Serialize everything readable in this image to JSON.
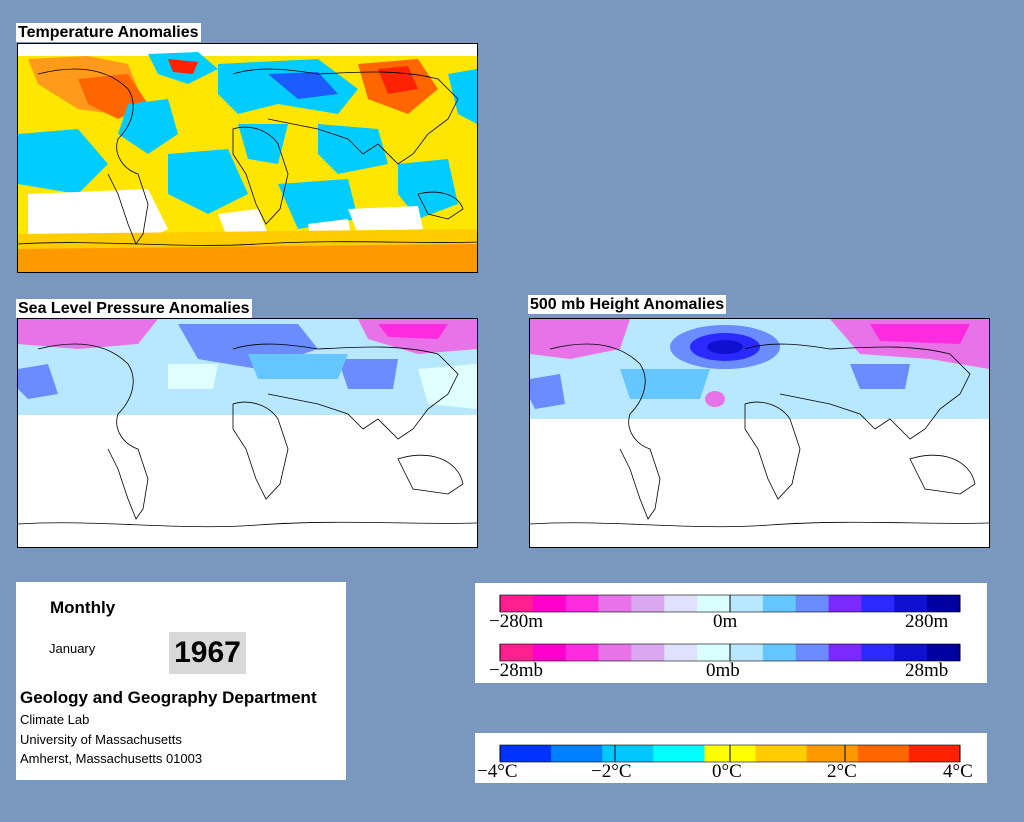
{
  "panels": {
    "temperature": {
      "title": "Temperature Anomalies"
    },
    "slp": {
      "title": "Sea Level Pressure Anomalies"
    },
    "height500": {
      "title": "500 mb Height Anomalies"
    }
  },
  "info": {
    "period_type": "Monthly",
    "month": "January",
    "year": "1967",
    "department": "Geology and Geography Department",
    "lines": [
      "Climate Lab",
      "University of Massachusetts",
      "Amherst, Massachusetts 01003"
    ]
  },
  "legends": {
    "height": {
      "labels": [
        "−280m",
        "0m",
        "280m"
      ]
    },
    "pressure": {
      "labels": [
        "−28mb",
        "0mb",
        "28mb"
      ]
    },
    "temperature": {
      "labels": [
        "−4°C",
        "−2°C",
        "0°C",
        "2°C",
        "4°C"
      ]
    }
  },
  "colors": {
    "background": "#7a97bf",
    "anomaly_scale_pink_blue": [
      "#ff1f8f",
      "#ff00cc",
      "#ff2be0",
      "#e873e8",
      "#d9a8f0",
      "#e0e0ff",
      "#d9ffff",
      "#b8e8ff",
      "#66c6ff",
      "#6a8cff",
      "#7a2aff",
      "#2a2aff",
      "#1010d0",
      "#0000a0"
    ],
    "temperature_scale": [
      "#0033ff",
      "#0080ff",
      "#00c8ff",
      "#00ffff",
      "#ffff00",
      "#ffcc00",
      "#ff9900",
      "#ff6600",
      "#ff2200"
    ]
  }
}
